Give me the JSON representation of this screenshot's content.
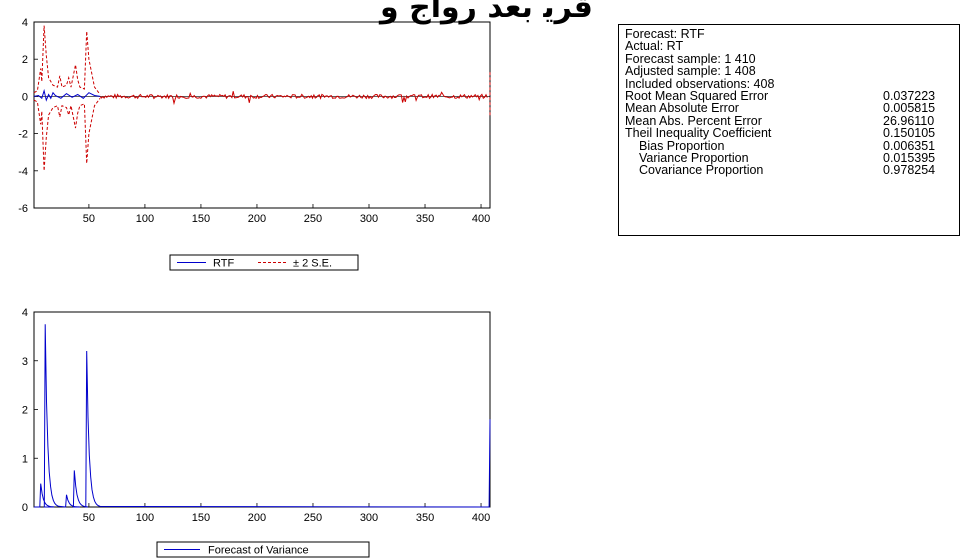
{
  "header_fragment": "ﻗﺮﻳ ﺑﻌﺪ ﺭﻭﺍﺝ ﻭ",
  "chart_data": [
    {
      "type": "line",
      "title": "",
      "xlabel": "",
      "ylabel": "",
      "xlim": [
        1,
        408
      ],
      "ylim": [
        -6,
        4
      ],
      "x_ticks": [
        50,
        100,
        150,
        200,
        250,
        300,
        350,
        400
      ],
      "y_ticks": [
        4,
        2,
        0,
        -2,
        -4,
        -6
      ],
      "legend_position": "bottom-center",
      "series": [
        {
          "name": "RTF",
          "color": "#0000cc",
          "style": "solid",
          "description_points": {
            "x": [
              1,
              5,
              8,
              10,
              12,
              14,
              16,
              18,
              20,
              25,
              30,
              35,
              40,
              45,
              50,
              55,
              60
            ],
            "y": [
              0,
              0.05,
              -0.1,
              0.3,
              -0.2,
              0.1,
              -0.1,
              0.2,
              0.05,
              -0.1,
              0.15,
              -0.05,
              0.1,
              -0.1,
              0.2,
              0.05,
              0
            ]
          }
        },
        {
          "name": "± 2 S.E.",
          "color": "#cc0000",
          "style": "dashed",
          "upper": {
            "x": [
              1,
              4,
              7,
              8,
              10,
              12,
              14,
              18,
              22,
              24,
              26,
              30,
              32,
              34,
              38,
              40,
              42,
              46,
              48,
              50,
              55,
              60
            ],
            "y": [
              0.2,
              0.3,
              1.5,
              0.8,
              3.8,
              2.2,
              1.0,
              0.6,
              0.5,
              1.1,
              0.5,
              0.6,
              1.0,
              0.5,
              1.7,
              0.9,
              0.5,
              0.4,
              3.5,
              2.0,
              0.5,
              0.1
            ]
          },
          "lower": {
            "x": [
              1,
              4,
              7,
              8,
              10,
              12,
              14,
              18,
              22,
              24,
              26,
              30,
              32,
              34,
              38,
              40,
              42,
              46,
              48,
              50,
              55,
              60
            ],
            "y": [
              -0.2,
              -0.3,
              -1.5,
              -0.8,
              -4.0,
              -2.2,
              -1.0,
              -0.6,
              -0.5,
              -1.1,
              -0.5,
              -0.6,
              -1.0,
              -0.5,
              -1.7,
              -0.9,
              -0.5,
              -0.4,
              -3.6,
              -2.0,
              -0.5,
              -0.1
            ]
          }
        }
      ]
    },
    {
      "type": "line",
      "title": "",
      "xlabel": "",
      "ylabel": "",
      "xlim": [
        1,
        408
      ],
      "ylim": [
        0,
        4
      ],
      "x_ticks": [
        50,
        100,
        150,
        200,
        250,
        300,
        350,
        400
      ],
      "y_ticks": [
        4,
        3,
        2,
        1,
        0
      ],
      "legend_position": "bottom-center",
      "series": [
        {
          "name": "Forecast of Variance",
          "color": "#0000cc",
          "style": "solid",
          "spikes": [
            {
              "x": 7,
              "peak": 0.48
            },
            {
              "x": 11,
              "peak": 3.75
            },
            {
              "x": 30,
              "peak": 0.25
            },
            {
              "x": 37,
              "peak": 0.75
            },
            {
              "x": 48,
              "peak": 3.2
            },
            {
              "x": 408,
              "peak": 1.8
            }
          ]
        }
      ]
    }
  ],
  "stats": {
    "lines": [
      {
        "label": "Forecast: RTF",
        "value": "",
        "indent": false
      },
      {
        "label": "Actual: RT",
        "value": "",
        "indent": false
      },
      {
        "label": "Forecast sample: 1 410",
        "value": "",
        "indent": false
      },
      {
        "label": "Adjusted sample: 1 408",
        "value": "",
        "indent": false
      },
      {
        "label": "Included observations: 408",
        "value": "",
        "indent": false
      },
      {
        "label": "Root Mean Squared Error",
        "value": "0.037223",
        "indent": false
      },
      {
        "label": "Mean Absolute Error",
        "value": "0.005815",
        "indent": false
      },
      {
        "label": "Mean Abs. Percent Error",
        "value": "26.96110",
        "indent": false
      },
      {
        "label": "Theil Inequality Coefficient",
        "value": "0.150105",
        "indent": false
      },
      {
        "label": "Bias Proportion",
        "value": "0.006351",
        "indent": true
      },
      {
        "label": "Variance Proportion",
        "value": "0.015395",
        "indent": true
      },
      {
        "label": "Covariance Proportion",
        "value": "0.978254",
        "indent": true
      }
    ]
  }
}
